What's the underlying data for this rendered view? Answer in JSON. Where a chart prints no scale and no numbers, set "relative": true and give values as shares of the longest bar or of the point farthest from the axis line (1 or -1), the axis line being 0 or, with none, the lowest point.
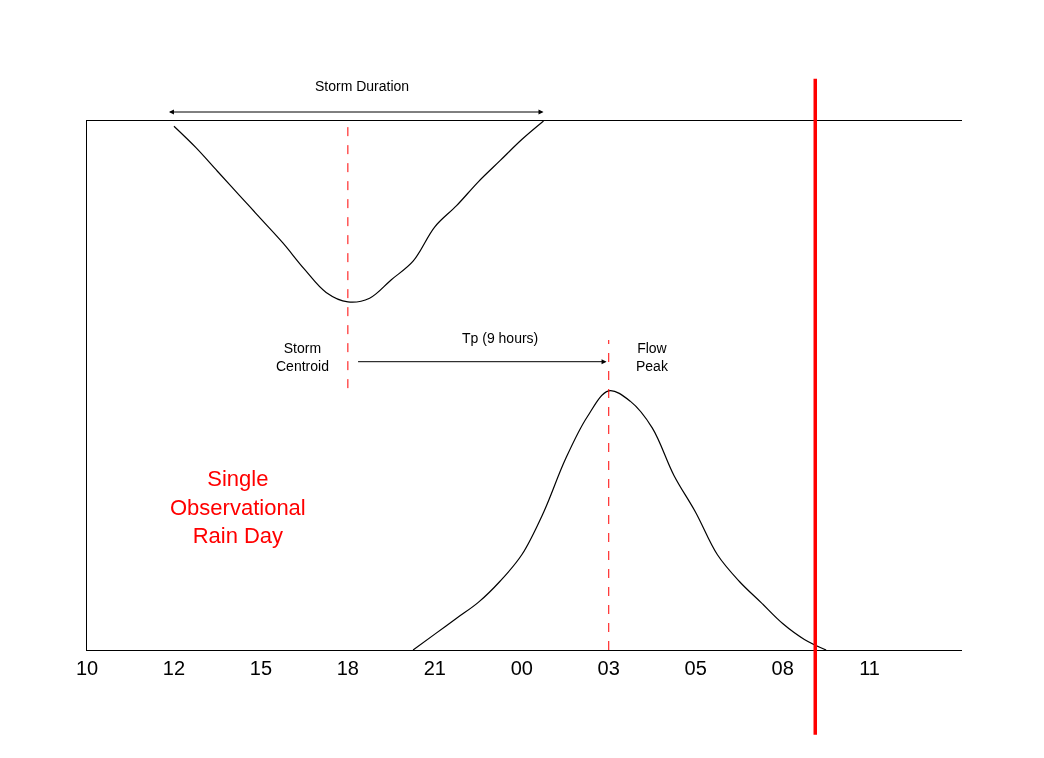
{
  "chart_data": {
    "type": "line",
    "relative": true,
    "marker": "none",
    "line_style": "solid",
    "categories": [
      "10",
      null,
      null,
      null,
      "12",
      null,
      null,
      null,
      "15",
      null,
      null,
      null,
      "18",
      null,
      null,
      null,
      "21",
      null,
      null,
      null,
      "00",
      null,
      null,
      null,
      "03",
      null,
      null,
      null,
      "05",
      null,
      null,
      null,
      "08",
      null,
      null,
      null,
      "11",
      null,
      null,
      null,
      null
    ],
    "series": [
      {
        "color": "#000000",
        "values": [
          null,
          null,
          null,
          null,
          0.99,
          0.95,
          0.905,
          0.86,
          0.815,
          0.77,
          0.72,
          0.676,
          0.658,
          0.665,
          0.7,
          0.735,
          0.8,
          0.84,
          0.885,
          0.925,
          0.965,
          1.0,
          null,
          null,
          null,
          null,
          null,
          null,
          null,
          null,
          null,
          null,
          null,
          null,
          null,
          null,
          null,
          null,
          null,
          null,
          null
        ]
      },
      {
        "color": "#000000",
        "values": [
          null,
          null,
          null,
          null,
          null,
          null,
          null,
          null,
          null,
          null,
          null,
          null,
          null,
          null,
          null,
          0,
          0.03,
          0.06,
          0.09,
          0.13,
          0.18,
          0.26,
          0.36,
          0.44,
          0.49,
          0.47,
          0.42,
          0.33,
          0.26,
          0.18,
          0.13,
          0.09,
          0.05,
          0.02,
          0,
          null,
          null,
          null,
          null,
          null,
          null
        ]
      }
    ],
    "ref_lines": [
      {
        "axis": "x",
        "value": "18",
        "color": "#ff0000",
        "line_style": "dashed"
      },
      {
        "axis": "x",
        "value": "03",
        "color": "#ff0000",
        "line_style": "dashed"
      },
      {
        "axis": "x",
        "color": "#ff0000",
        "line_style": "solid"
      }
    ],
    "annotations": [
      "Storm Duration",
      "Storm\nCentroid",
      "Tp (9 hours)",
      "Flow\nPeak",
      "Single\nObservational\nRain Day"
    ]
  }
}
